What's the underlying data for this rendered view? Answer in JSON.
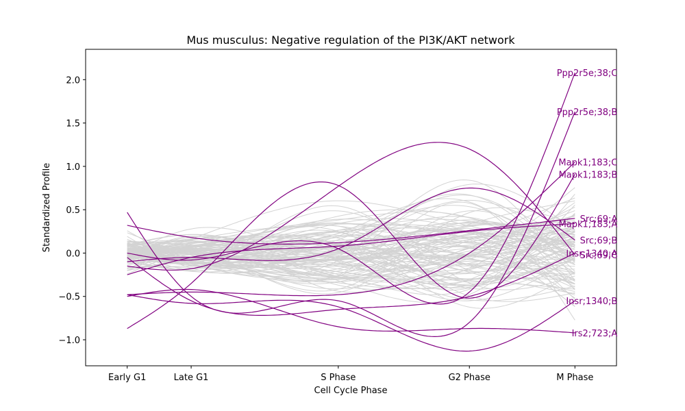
{
  "chart_data": {
    "type": "line",
    "title": "Mus musculus: Negative regulation of the PI3K/AKT network",
    "xlabel": "Cell Cycle Phase",
    "ylabel": "Standardized Profile",
    "categories": [
      "Early G1",
      "Late G1",
      "S Phase",
      "G2 Phase",
      "M Phase"
    ],
    "category_positions": [
      0,
      1,
      3.3,
      5.35,
      7
    ],
    "xlim": [
      -0.65,
      7.65
    ],
    "ylim": [
      -1.3,
      2.35
    ],
    "yticks": [
      -1.0,
      -0.5,
      0.0,
      0.5,
      1.0,
      1.5,
      2.0
    ],
    "ytick_labels": [
      "−1.0",
      "−0.5",
      "0.0",
      "0.5",
      "1.0",
      "1.5",
      "2.0"
    ],
    "grid": false,
    "background_color": "#d3d3d3",
    "highlight_color": "#800080",
    "highlighted_series": [
      {
        "name": "Ppp2r5e;38;C",
        "values": [
          0.0,
          -0.08,
          0.05,
          -0.45,
          2.08
        ]
      },
      {
        "name": "Ppp2r5e;38;B",
        "values": [
          0.47,
          -0.5,
          -0.55,
          -0.8,
          1.63
        ]
      },
      {
        "name": "Mapk1;183;C",
        "values": [
          -0.48,
          -0.45,
          -0.48,
          0.0,
          1.05
        ]
      },
      {
        "name": "Mapk1;183;B",
        "values": [
          -0.87,
          -0.35,
          0.78,
          -0.52,
          0.91
        ]
      },
      {
        "name": "Src;69;A",
        "values": [
          0.32,
          0.18,
          0.12,
          0.26,
          0.4
        ]
      },
      {
        "name": "Mapk1;183;A",
        "values": [
          -0.25,
          -0.05,
          0.08,
          0.25,
          0.34
        ]
      },
      {
        "name": "Src;69;B",
        "values": [
          -0.1,
          -0.05,
          0.05,
          0.75,
          0.15
        ]
      },
      {
        "name": "Src;69;C",
        "values": [
          -0.15,
          -0.18,
          0.77,
          1.2,
          -0.02
        ]
      },
      {
        "name": "Insr;1340;A",
        "values": [
          -0.05,
          -0.55,
          -0.65,
          -0.5,
          0.0
        ]
      },
      {
        "name": "Irs2;723;A",
        "values": [
          -0.5,
          -0.42,
          -0.85,
          -0.87,
          -0.92
        ]
      },
      {
        "name": "Insr;1340;B",
        "values": [
          -0.48,
          -0.58,
          -0.62,
          -1.13,
          -0.55
        ]
      }
    ],
    "background_series_count": 110
  }
}
